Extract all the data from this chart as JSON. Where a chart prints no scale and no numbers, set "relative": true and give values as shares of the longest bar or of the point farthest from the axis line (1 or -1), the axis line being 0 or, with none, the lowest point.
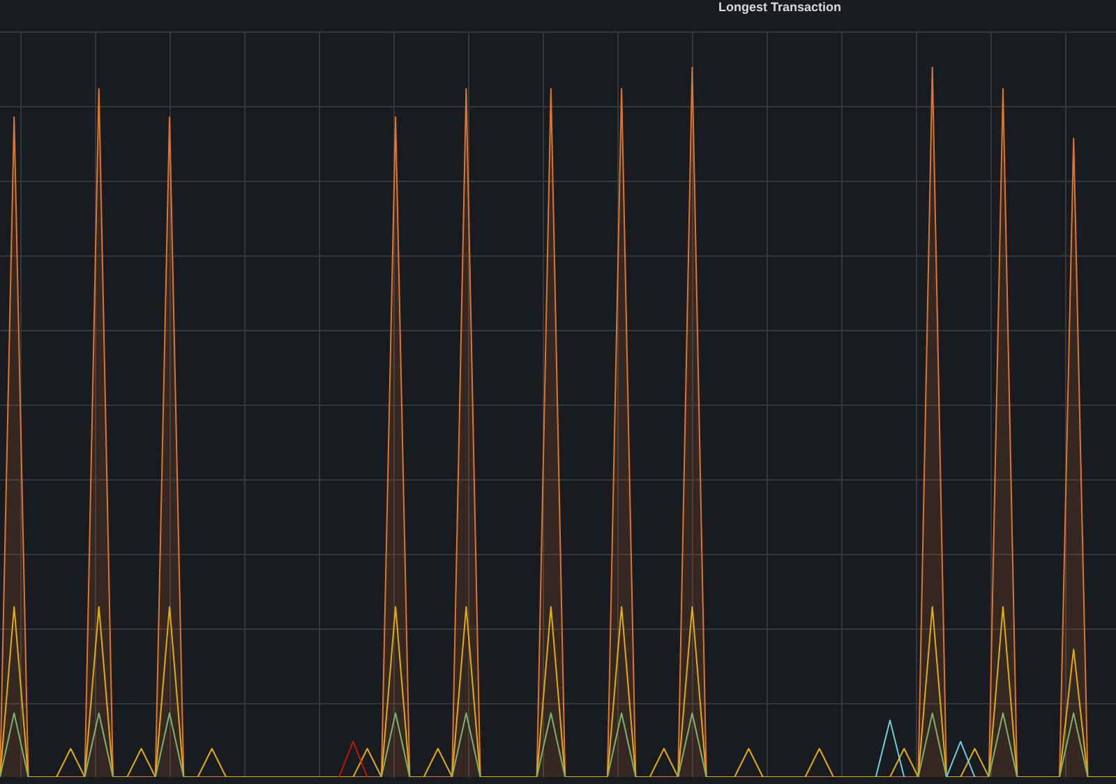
{
  "chart_data": {
    "type": "line",
    "title": "Longest Transaction",
    "relative": true,
    "grid": true,
    "tick_labels": false,
    "categories": [
      null,
      null,
      null,
      null,
      null,
      null,
      null,
      null,
      null,
      null,
      null,
      null,
      null,
      null,
      null,
      null,
      null,
      null,
      null,
      null,
      null,
      null,
      null,
      null,
      null,
      null,
      null,
      null,
      null,
      null,
      null,
      null,
      null,
      null,
      null,
      null,
      null,
      null,
      null,
      null,
      null,
      null,
      null,
      null,
      null,
      null,
      null,
      null,
      null,
      null,
      null,
      null,
      null,
      null,
      null,
      null,
      null,
      null,
      null,
      null,
      null,
      null,
      null,
      null,
      null,
      null,
      null,
      null,
      null,
      null,
      null,
      null,
      null,
      null,
      null,
      null,
      null,
      null,
      null,
      null
    ],
    "series": [
      {
        "type": "area",
        "color": "#e0752d",
        "values": [
          0,
          0.93,
          0,
          0,
          0,
          0,
          0,
          0.97,
          0,
          0,
          0,
          0,
          0.93,
          0,
          0,
          0,
          0,
          0,
          0,
          0,
          0,
          0,
          0,
          0,
          0,
          0,
          0,
          0,
          0.93,
          0,
          0,
          0,
          0,
          0.97,
          0,
          0,
          0,
          0,
          0,
          0.97,
          0,
          0,
          0,
          0,
          0.97,
          0,
          0,
          0,
          0,
          1,
          0,
          0,
          0,
          0,
          0,
          0,
          0,
          0,
          0,
          0,
          0,
          0,
          0,
          0,
          0,
          0,
          1,
          0,
          0,
          0,
          0,
          0.97,
          0,
          0,
          0,
          0,
          0.9,
          0,
          0,
          0
        ]
      },
      {
        "color": "#e5ac0e",
        "values": [
          0,
          0.24,
          0,
          0,
          0,
          0.04,
          0,
          0.24,
          0,
          0,
          0.04,
          0,
          0.24,
          0,
          0,
          0.04,
          0,
          0,
          0,
          0,
          0,
          0,
          0,
          0,
          0,
          0,
          0.04,
          0,
          0.24,
          0,
          0,
          0.04,
          0,
          0.24,
          0,
          0,
          0,
          0,
          0,
          0.24,
          0,
          0,
          0,
          0,
          0.24,
          0,
          0,
          0.04,
          0,
          0.24,
          0,
          0,
          0,
          0.04,
          0,
          0,
          0,
          0,
          0.04,
          0,
          0,
          0,
          0,
          0,
          0.04,
          0,
          0.24,
          0,
          0,
          0.04,
          0,
          0.24,
          0,
          0,
          0,
          0,
          0.18,
          0,
          0,
          0
        ]
      },
      {
        "color": "#7eb26d",
        "values": [
          0,
          0.09,
          0,
          null,
          null,
          null,
          0,
          0.09,
          0,
          null,
          null,
          0,
          0.09,
          0,
          null,
          null,
          null,
          null,
          null,
          null,
          null,
          null,
          null,
          null,
          null,
          null,
          null,
          0,
          0.09,
          0,
          null,
          null,
          0,
          0.09,
          0,
          null,
          null,
          null,
          0,
          0.09,
          0,
          null,
          null,
          0,
          0.09,
          0,
          null,
          null,
          0,
          0.09,
          0,
          null,
          null,
          null,
          null,
          null,
          null,
          null,
          null,
          null,
          null,
          null,
          null,
          null,
          null,
          0,
          0.09,
          0,
          null,
          null,
          0,
          0.09,
          0,
          null,
          null,
          0,
          0.09,
          0,
          null,
          null
        ]
      },
      {
        "color": "#bf1b00",
        "values": [
          null,
          null,
          null,
          null,
          null,
          null,
          null,
          null,
          null,
          null,
          null,
          null,
          null,
          null,
          null,
          null,
          null,
          null,
          null,
          null,
          null,
          null,
          null,
          null,
          0,
          0.05,
          0,
          null,
          null,
          null,
          null,
          null,
          null,
          null,
          null,
          null,
          null,
          null,
          null,
          null,
          null,
          null,
          null,
          null,
          null,
          null,
          null,
          null,
          null,
          null,
          null,
          null,
          null,
          null,
          null,
          null,
          null,
          null,
          null,
          null,
          null,
          null,
          null,
          null,
          null,
          null,
          null,
          null,
          null,
          null,
          null,
          null,
          null,
          null,
          null,
          null,
          null,
          null,
          null,
          null
        ]
      },
      {
        "color": "#6ed0e0",
        "values": [
          null,
          null,
          null,
          null,
          null,
          null,
          null,
          null,
          null,
          null,
          null,
          null,
          null,
          null,
          null,
          null,
          null,
          null,
          null,
          null,
          null,
          null,
          null,
          null,
          null,
          null,
          null,
          null,
          null,
          null,
          null,
          null,
          null,
          null,
          null,
          null,
          null,
          null,
          null,
          null,
          null,
          null,
          null,
          null,
          null,
          null,
          null,
          null,
          null,
          null,
          null,
          null,
          null,
          null,
          null,
          null,
          null,
          null,
          null,
          null,
          null,
          null,
          0,
          0.08,
          0,
          null,
          null,
          0,
          0.05,
          0,
          null,
          null,
          null,
          null,
          null,
          null,
          null,
          null,
          null,
          null
        ]
      }
    ]
  }
}
